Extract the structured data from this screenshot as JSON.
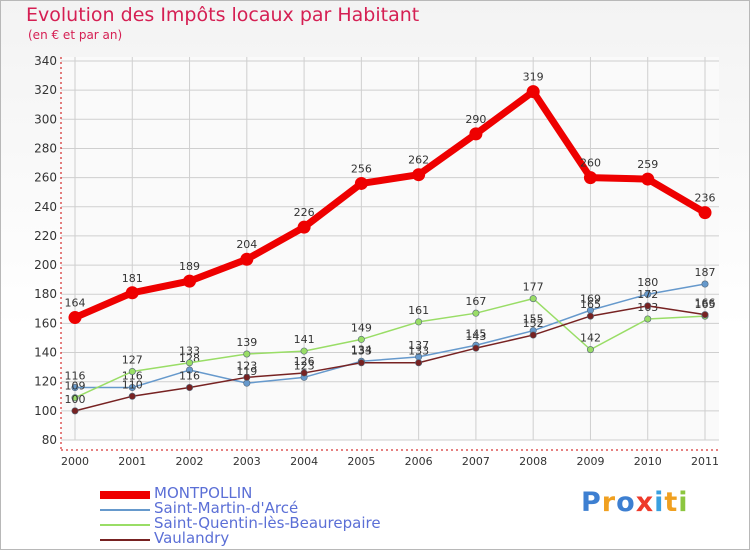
{
  "chart_data": {
    "type": "line",
    "title": "Evolution des Impôts locaux par Habitant",
    "subtitle": "(en € et par an)",
    "categories": [
      "2000",
      "2001",
      "2002",
      "2003",
      "2004",
      "2005",
      "2006",
      "2007",
      "2008",
      "2009",
      "2010",
      "2011"
    ],
    "ylim": [
      80,
      340
    ],
    "yticks": [
      80,
      100,
      120,
      140,
      160,
      180,
      200,
      220,
      240,
      260,
      280,
      300,
      320,
      340
    ],
    "grid": true,
    "series": [
      {
        "name": "MONTPOLLIN",
        "color": "#ee0000",
        "values": [
          164,
          181,
          189,
          204,
          226,
          256,
          262,
          290,
          319,
          260,
          259,
          236
        ]
      },
      {
        "name": "Saint-Martin-d'Arcé",
        "color": "#6699cc",
        "values": [
          116,
          116,
          128,
          119,
          123,
          134,
          137,
          145,
          155,
          169,
          180,
          187
        ]
      },
      {
        "name": "Saint-Quentin-lès-Beaurepaire",
        "color": "#99dd66",
        "values": [
          109,
          127,
          133,
          139,
          141,
          149,
          161,
          167,
          177,
          142,
          163,
          165
        ]
      },
      {
        "name": "Vaulandry",
        "color": "#772222",
        "values": [
          100,
          110,
          116,
          123,
          126,
          133,
          133,
          143,
          152,
          165,
          172,
          166
        ]
      }
    ],
    "legend_position": "bottom-left"
  },
  "logo": {
    "letters": [
      "P",
      "r",
      "o",
      "x",
      "i",
      "t",
      "i"
    ]
  }
}
